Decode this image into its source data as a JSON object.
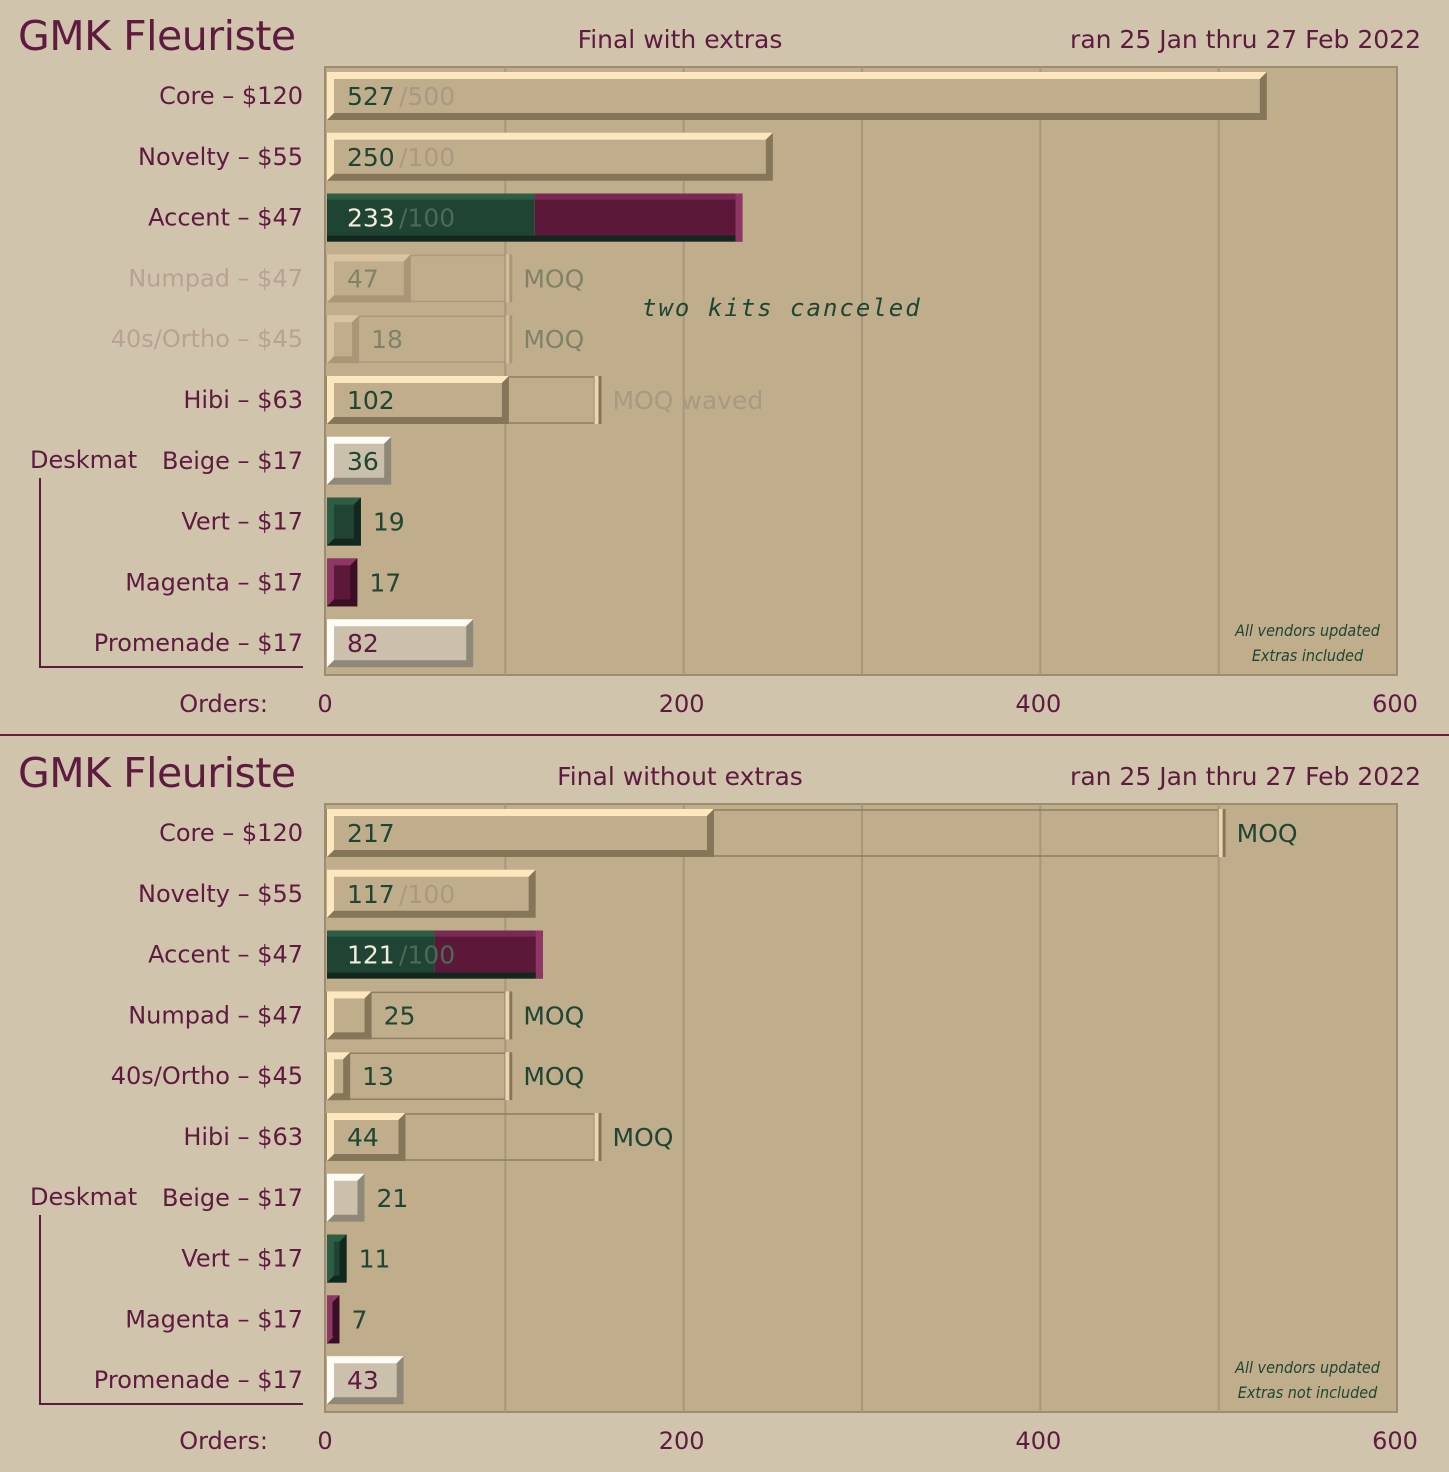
{
  "chart_data": [
    {
      "type": "bar",
      "title": "GMK Fleuriste",
      "subtitle": "Final with extras",
      "date_range": "ran 25 Jan thru 27 Feb 2022",
      "xlabel": "Orders:",
      "xlim": [
        0,
        600
      ],
      "xticks": [
        "0",
        "200",
        "400",
        "600"
      ],
      "group_label": "Deskmat",
      "note": [
        "All vendors updated",
        "Extras included"
      ],
      "annotation": "two kits canceled",
      "bars": [
        {
          "label": "Core – $120",
          "value": 527,
          "target_text": "/500",
          "style": "kit",
          "muted": false
        },
        {
          "label": "Novelty – $55",
          "value": 250,
          "target_text": "/100",
          "style": "kit",
          "muted": false
        },
        {
          "label": "Accent – $47",
          "value": 233,
          "target_text": "/100",
          "style": "accent",
          "muted": false
        },
        {
          "label": "Numpad – $47",
          "value": 47,
          "moq": 100,
          "moq_label": "MOQ",
          "style": "kit",
          "muted": true
        },
        {
          "label": "40s/Ortho – $45",
          "value": 18,
          "moq": 100,
          "moq_label": "MOQ",
          "style": "kit",
          "muted": true
        },
        {
          "label": "Hibi – $63",
          "value": 102,
          "moq": 150,
          "moq_label": "MOQ waved",
          "style": "kit",
          "muted": false
        },
        {
          "label": "Beige – $17",
          "value": 36,
          "style": "deskmat-beige",
          "muted": false
        },
        {
          "label": "Vert – $17",
          "value": 19,
          "style": "deskmat-vert",
          "muted": false
        },
        {
          "label": "Magenta – $17",
          "value": 17,
          "style": "deskmat-magenta",
          "muted": false
        },
        {
          "label": "Promenade – $17",
          "value": 82,
          "style": "deskmat-promenade",
          "muted": false
        }
      ]
    },
    {
      "type": "bar",
      "title": "GMK Fleuriste",
      "subtitle": "Final without extras",
      "date_range": "ran 25 Jan thru 27 Feb 2022",
      "xlabel": "Orders:",
      "xlim": [
        0,
        600
      ],
      "xticks": [
        "0",
        "200",
        "400",
        "600"
      ],
      "group_label": "Deskmat",
      "note": [
        "All vendors updated",
        "Extras not included"
      ],
      "annotation": "",
      "bars": [
        {
          "label": "Core – $120",
          "value": 217,
          "moq": 500,
          "moq_label": "MOQ",
          "style": "kit",
          "muted": false
        },
        {
          "label": "Novelty – $55",
          "value": 117,
          "target_text": "/100",
          "style": "kit",
          "muted": false
        },
        {
          "label": "Accent – $47",
          "value": 121,
          "target_text": "/100",
          "style": "accent",
          "muted": false
        },
        {
          "label": "Numpad – $47",
          "value": 25,
          "moq": 100,
          "moq_label": "MOQ",
          "style": "kit",
          "muted": false
        },
        {
          "label": "40s/Ortho – $45",
          "value": 13,
          "moq": 100,
          "moq_label": "MOQ",
          "style": "kit",
          "muted": false
        },
        {
          "label": "Hibi – $63",
          "value": 44,
          "moq": 150,
          "moq_label": "MOQ",
          "style": "kit",
          "muted": false
        },
        {
          "label": "Beige – $17",
          "value": 21,
          "style": "deskmat-beige",
          "muted": false
        },
        {
          "label": "Vert – $17",
          "value": 11,
          "style": "deskmat-vert",
          "muted": false
        },
        {
          "label": "Magenta – $17",
          "value": 7,
          "style": "deskmat-magenta",
          "muted": false
        },
        {
          "label": "Promenade – $17",
          "value": 43,
          "style": "deskmat-promenade",
          "muted": false
        }
      ]
    }
  ],
  "colors": {
    "background": "#d0c4ad",
    "plot_area": "#c0ad8c",
    "label": "#5f1a3f",
    "muted_label": "#b9a28f",
    "value_text": "#1e4632",
    "muted_text": "#a89a82",
    "vert": "#1e4632",
    "magenta": "#6b1d42"
  }
}
